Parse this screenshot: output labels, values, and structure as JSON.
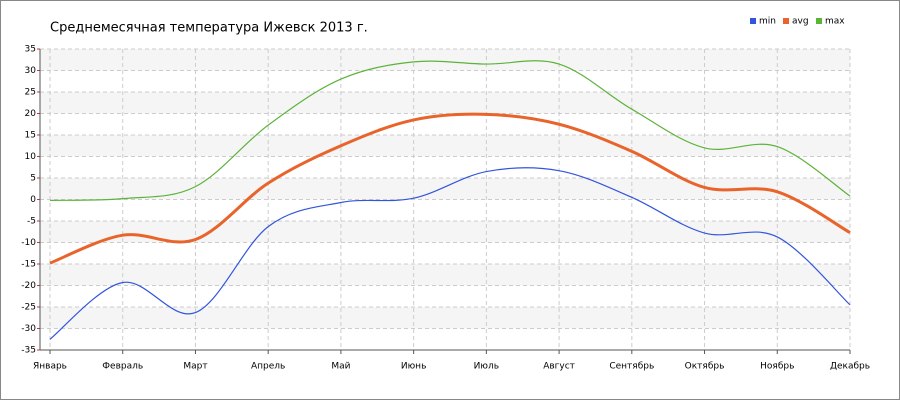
{
  "chart_data": {
    "type": "line",
    "title": "Среднемесячная температура Ижевск  2013 г.",
    "categories": [
      "Январь",
      "Февраль",
      "Март",
      "Апрель",
      "Май",
      "Июнь",
      "Июль",
      "Август",
      "Сентябрь",
      "Октябрь",
      "Ноябрь",
      "Декабрь"
    ],
    "series": [
      {
        "name": "min",
        "color": "#3355dd",
        "values": [
          -32.5,
          -19.3,
          -26.3,
          -6.3,
          -0.7,
          0.3,
          6.5,
          6.7,
          0.5,
          -7.8,
          -8.7,
          -24.5
        ]
      },
      {
        "name": "avg",
        "color": "#e8642a",
        "values": [
          -14.8,
          -8.3,
          -9.3,
          3.8,
          12.5,
          18.5,
          19.8,
          17.5,
          11.2,
          2.8,
          1.8,
          -7.7
        ]
      },
      {
        "name": "max",
        "color": "#5cb33a",
        "values": [
          -0.2,
          0.2,
          3.0,
          17.3,
          28,
          32,
          31.5,
          31.5,
          21,
          12,
          12.3,
          0.8
        ]
      }
    ],
    "ylim": [
      -35,
      35
    ],
    "yticks": [
      -35,
      -30,
      -25,
      -20,
      -15,
      -10,
      -5,
      0,
      5,
      10,
      15,
      20,
      25,
      30,
      35
    ],
    "grid": true,
    "legend": "top-right"
  }
}
